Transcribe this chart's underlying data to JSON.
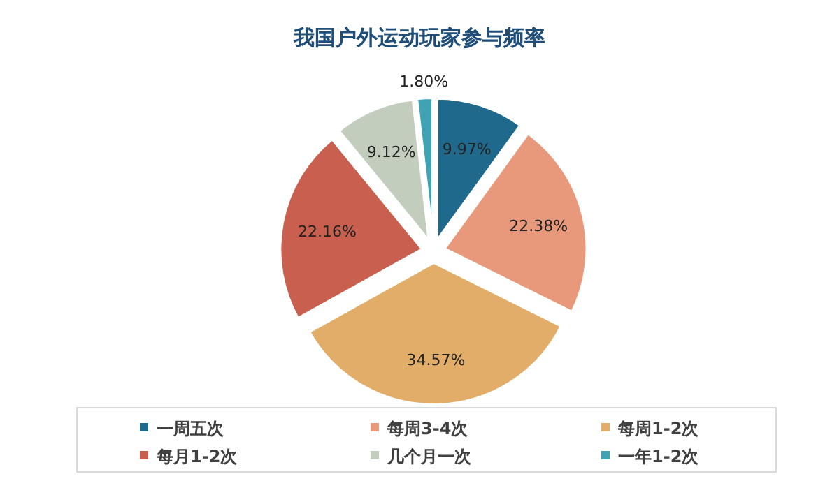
{
  "chart_data": {
    "type": "pie",
    "title": "我国户外运动玩家参与频率",
    "categories": [
      "一周五次",
      "每周3-4次",
      "每周1-2次",
      "每月1-2次",
      "几个月一次",
      "一年1-2次"
    ],
    "values": [
      9.97,
      22.38,
      34.57,
      22.16,
      9.12,
      1.8
    ],
    "value_labels": [
      "9.97%",
      "22.38%",
      "34.57%",
      "22.16%",
      "9.12%",
      "1.80%"
    ],
    "colors": [
      "#1f6a8c",
      "#e9997b",
      "#e2ad69",
      "#c9604f",
      "#c3cdbd",
      "#3fa3b3"
    ],
    "legend": "bottom"
  }
}
